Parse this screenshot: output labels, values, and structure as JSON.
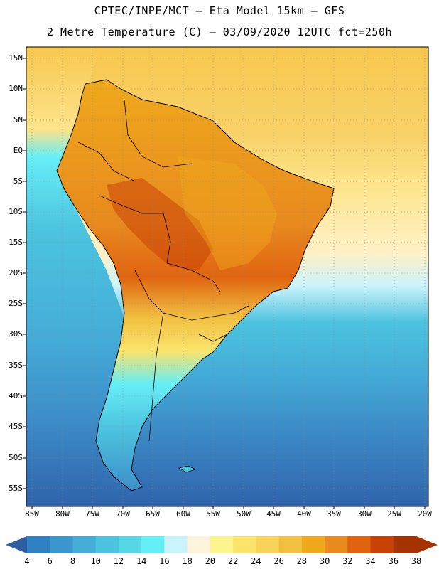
{
  "header": {
    "line1": "CPTEC/INPE/MCT —  Eta Model 15km — GFS",
    "line2": "2 Metre Temperature (C) — 03/09/2020 12UTC fct=250h"
  },
  "lat_labels": [
    "15N",
    "10N",
    "5N",
    "EQ",
    "5S",
    "10S",
    "15S",
    "20S",
    "25S",
    "30S",
    "35S",
    "40S",
    "45S",
    "50S",
    "55S"
  ],
  "lon_labels": [
    "85W",
    "80W",
    "75W",
    "70W",
    "65W",
    "60W",
    "55W",
    "50W",
    "45W",
    "40W",
    "35W",
    "30W",
    "25W",
    "20W"
  ],
  "colorbar": {
    "labels": [
      "4",
      "6",
      "8",
      "10",
      "12",
      "14",
      "16",
      "18",
      "20",
      "22",
      "24",
      "26",
      "28",
      "30",
      "32",
      "34",
      "36",
      "38"
    ],
    "colors": [
      "#3b70b5",
      "#2e82c2",
      "#3d97cf",
      "#45aed8",
      "#4cc3df",
      "#55d7e6",
      "#66eef6",
      "#cbf3fb",
      "#fff4dc",
      "#fef58e",
      "#fbe46c",
      "#f7d35a",
      "#f1c041",
      "#efa91c",
      "#e88a1f",
      "#e06410",
      "#c84206",
      "#a53300",
      "#2f5ea3"
    ]
  }
}
